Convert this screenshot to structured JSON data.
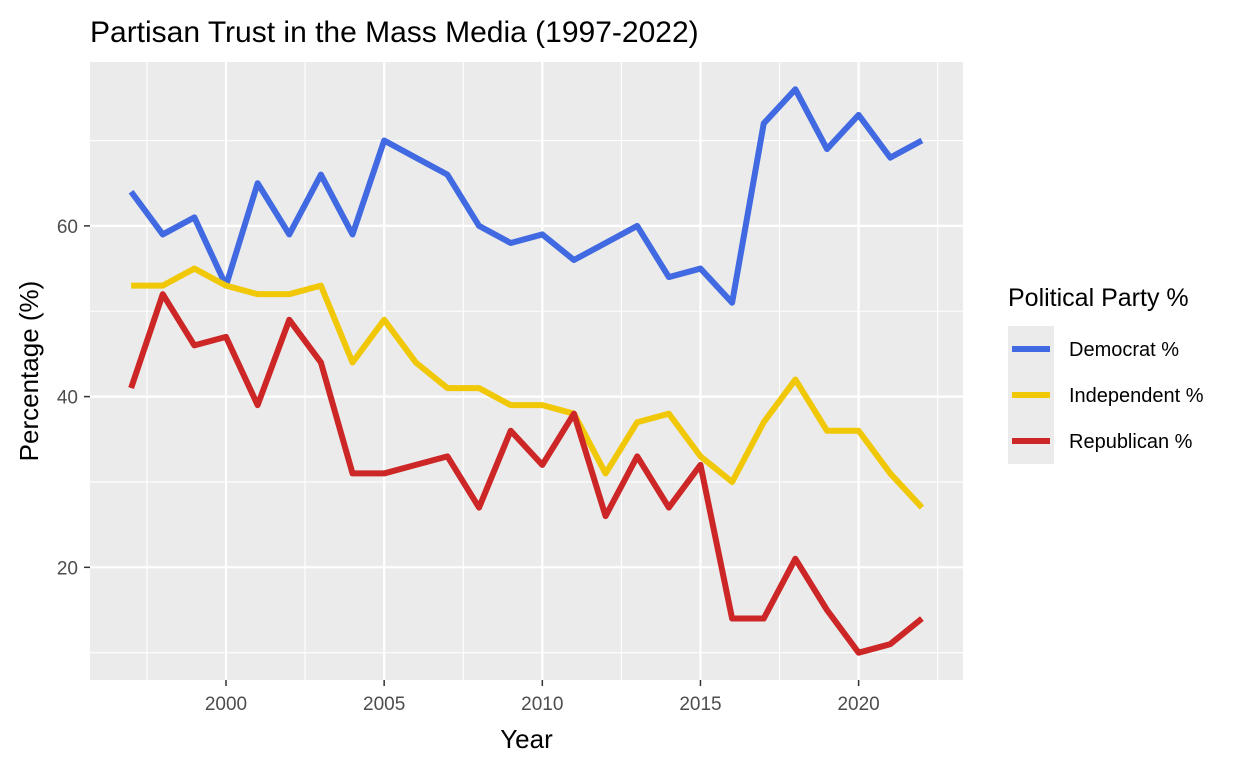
{
  "chart_data": {
    "type": "line",
    "title": "Partisan Trust in the Mass Media (1997-2022)",
    "xlabel": "Year",
    "ylabel": "Percentage (%)",
    "x": [
      1997,
      1998,
      1999,
      2000,
      2001,
      2002,
      2003,
      2004,
      2005,
      2006,
      2007,
      2008,
      2009,
      2010,
      2011,
      2012,
      2013,
      2014,
      2015,
      2016,
      2017,
      2018,
      2019,
      2020,
      2021,
      2022
    ],
    "xlim": [
      1995.7,
      2023.3
    ],
    "ylim": [
      6.8,
      79.2
    ],
    "x_ticks": [
      2000,
      2005,
      2010,
      2015,
      2020
    ],
    "x_tick_labels": [
      "2000",
      "2005",
      "2010",
      "2015",
      "2020"
    ],
    "x_minor_ticks": [
      1997.5,
      2002.5,
      2007.5,
      2012.5,
      2017.5,
      2022.5
    ],
    "y_ticks": [
      20,
      40,
      60
    ],
    "y_tick_labels": [
      "20",
      "40",
      "60"
    ],
    "y_minor_ticks": [
      10,
      30,
      50,
      70
    ],
    "grid": true,
    "panel_background": "#ebebeb",
    "grid_color": "#ffffff",
    "legend": {
      "title": "Political Party %",
      "placement": "right",
      "key_background": "#ebebeb"
    },
    "series": [
      {
        "name": "Democrat %",
        "color": "#4169e1",
        "values": [
          64,
          59,
          61,
          53,
          65,
          59,
          66,
          59,
          70,
          68,
          66,
          60,
          58,
          59,
          56,
          58,
          60,
          54,
          55,
          51,
          72,
          76,
          69,
          73,
          68,
          70
        ]
      },
      {
        "name": "Independent %",
        "color": "#f0c808",
        "values": [
          53,
          53,
          55,
          53,
          52,
          52,
          53,
          44,
          49,
          44,
          41,
          41,
          39,
          39,
          38,
          31,
          37,
          38,
          33,
          30,
          37,
          42,
          36,
          36,
          31,
          27
        ]
      },
      {
        "name": "Republican %",
        "color": "#cd2626",
        "values": [
          41,
          52,
          46,
          47,
          39,
          49,
          44,
          31,
          31,
          32,
          33,
          27,
          36,
          32,
          38,
          26,
          33,
          27,
          32,
          14,
          14,
          21,
          15,
          10,
          11,
          14
        ]
      }
    ]
  }
}
